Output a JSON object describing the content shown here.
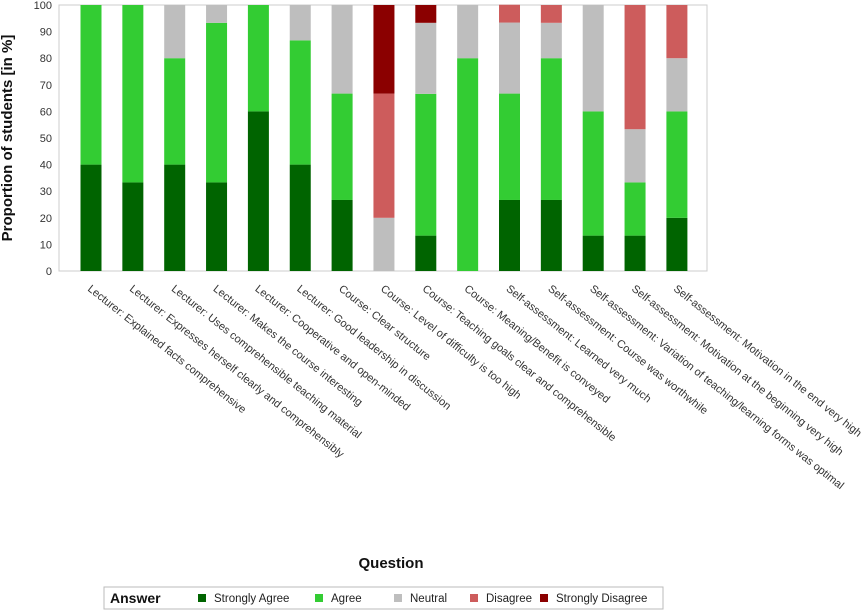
{
  "chart_data": {
    "type": "bar",
    "stacked": true,
    "xlabel": "Question",
    "ylabel": "Proportion of students [in %]",
    "ylim": [
      0,
      100
    ],
    "yticks": [
      0,
      10,
      20,
      30,
      40,
      50,
      60,
      70,
      80,
      90,
      100
    ],
    "grid": false,
    "legend_title": "Answer",
    "legend_position": "bottom",
    "categories": [
      "Lecturer: Explained facts comprehensive",
      "Lecturer: Expresses herself clearly and comprehensibly",
      "Lecturer: Uses comprehensible teaching material",
      "Lecturer: Makes the course interesting",
      "Lecturer: Cooperative and open-minded",
      "Lecturer: Good leadership in discussion",
      "Course: Clear structure",
      "Course: Level of difficulty is too high",
      "Course: Teaching goals clear and comprehensible",
      "Course: Meaning/Benefit is conveyed",
      "Self-assessment: Learned very much",
      "Self-assessment: Course was worthwhile",
      "Self-assessment: Variation of teaching/learning forms was optimal",
      "Self-assessment: Motivation at the beginning very high",
      "Self-assessment: Motivation in the end very high"
    ],
    "series": [
      {
        "name": "Strongly Agree",
        "color": "#006400",
        "values": [
          40,
          33.3,
          40,
          33.3,
          60,
          40,
          26.7,
          0,
          13.3,
          0,
          26.7,
          26.7,
          13.3,
          13.3,
          20
        ]
      },
      {
        "name": "Agree",
        "color": "#33cc33",
        "values": [
          60,
          66.7,
          40,
          60,
          40,
          46.7,
          40,
          0,
          53.3,
          80,
          40,
          53.3,
          46.7,
          20,
          40
        ]
      },
      {
        "name": "Neutral",
        "color": "#bebebe",
        "values": [
          0,
          0,
          20,
          6.7,
          0,
          13.3,
          33.3,
          20,
          26.7,
          20,
          26.7,
          13.3,
          40,
          20,
          20
        ]
      },
      {
        "name": "Disagree",
        "color": "#cd5c5c",
        "values": [
          0,
          0,
          0,
          0,
          0,
          0,
          0,
          46.7,
          0,
          0,
          6.7,
          6.7,
          0,
          46.7,
          20
        ]
      },
      {
        "name": "Strongly Disagree",
        "color": "#8b0000",
        "values": [
          0,
          0,
          0,
          0,
          0,
          0,
          0,
          33.3,
          6.7,
          0,
          0,
          0,
          0,
          0,
          0
        ]
      }
    ]
  }
}
